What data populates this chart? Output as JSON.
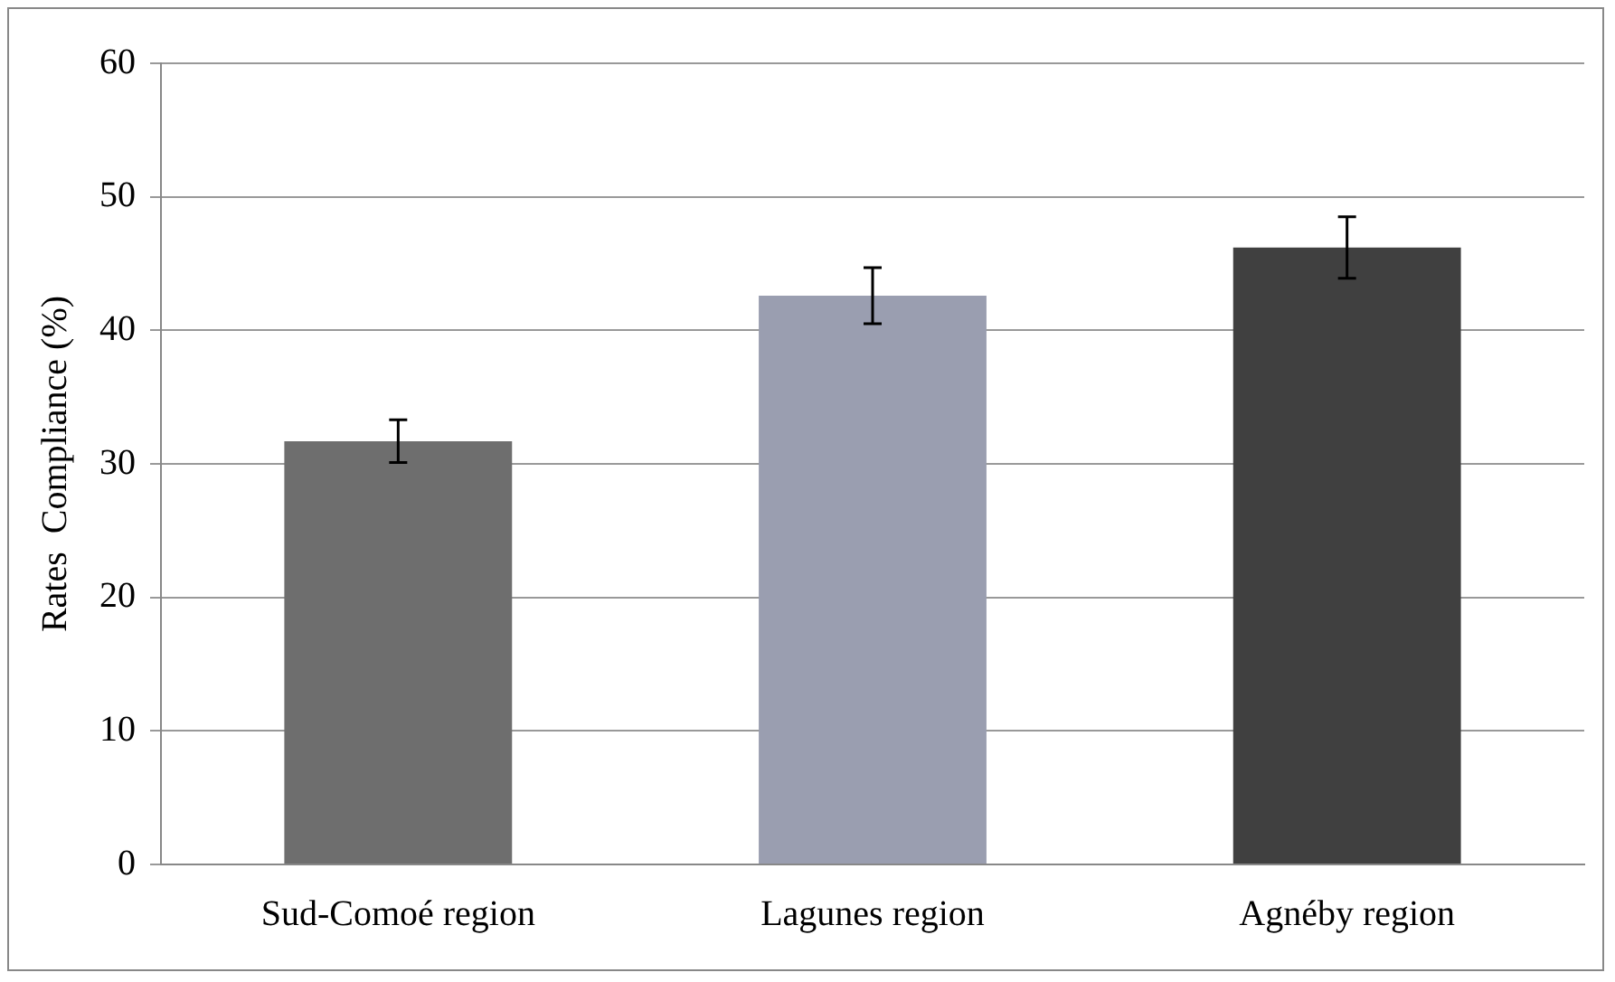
{
  "chart_data": {
    "type": "bar",
    "ylabel": "Rates  Compliance (%)",
    "categories": [
      "Sud-Comoé region",
      "Lagunes region",
      "Agnéby region"
    ],
    "values": [
      31.7,
      42.6,
      46.2
    ],
    "errors": [
      1.6,
      2.1,
      2.3
    ],
    "colors": [
      "#6e6e6e",
      "#9a9eb0",
      "#404040"
    ],
    "ylim": [
      0,
      60
    ],
    "yticks": [
      0,
      10,
      20,
      30,
      40,
      50,
      60
    ],
    "grid": "y",
    "legend": false
  }
}
